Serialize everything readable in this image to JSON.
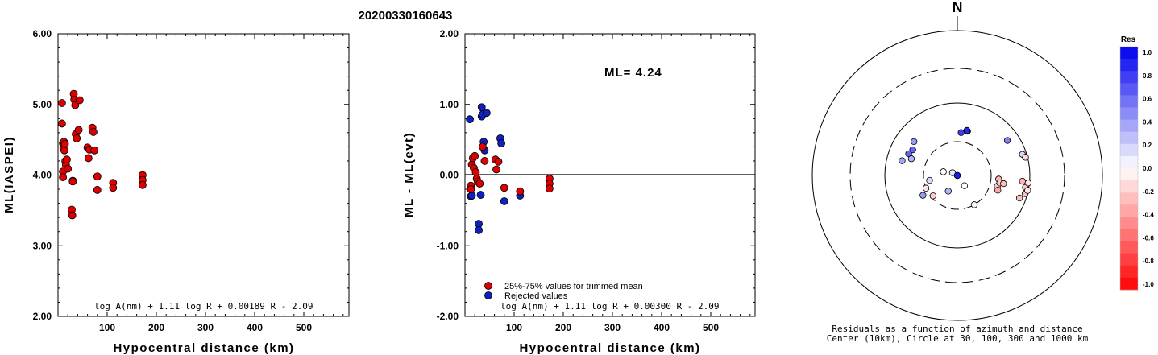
{
  "title": "20200330160643",
  "chart_data": [
    {
      "type": "scatter",
      "name": "ml-vs-distance",
      "xlabel": "Hypocentral distance (km)",
      "ylabel": "ML(IASPEI)",
      "xlim": [
        0,
        600
      ],
      "ylim": [
        2.0,
        6.0
      ],
      "xticks": [
        "100",
        "200",
        "300",
        "400",
        "500"
      ],
      "yticks": [
        "2.00",
        "3.00",
        "4.00",
        "5.00",
        "6.00"
      ],
      "formula": "log A(nm) + 1.11 log R + 0.00189 R - 2.09",
      "points": [
        [
          8,
          5.02
        ],
        [
          8,
          4.73
        ],
        [
          10,
          4.45
        ],
        [
          11,
          4.38
        ],
        [
          10,
          4.05
        ],
        [
          10,
          3.97
        ],
        [
          12,
          4.47
        ],
        [
          13,
          4.35
        ],
        [
          14,
          4.44
        ],
        [
          15,
          4.2
        ],
        [
          16,
          4.15
        ],
        [
          18,
          4.22
        ],
        [
          20,
          4.09
        ],
        [
          28,
          3.51
        ],
        [
          29,
          3.43
        ],
        [
          30,
          3.92
        ],
        [
          30,
          3.91
        ],
        [
          32,
          5.15
        ],
        [
          33,
          5.07
        ],
        [
          35,
          4.99
        ],
        [
          36,
          4.58
        ],
        [
          38,
          4.52
        ],
        [
          42,
          4.64
        ],
        [
          44,
          5.06
        ],
        [
          60,
          4.39
        ],
        [
          62,
          4.24
        ],
        [
          64,
          4.36
        ],
        [
          70,
          4.67
        ],
        [
          72,
          4.61
        ],
        [
          74,
          4.35
        ],
        [
          80,
          3.98
        ],
        [
          80,
          3.79
        ],
        [
          112,
          3.89
        ],
        [
          112,
          3.82
        ],
        [
          172,
          4.0
        ],
        [
          172,
          3.93
        ],
        [
          172,
          3.86
        ]
      ]
    },
    {
      "type": "scatter",
      "name": "residual-vs-distance",
      "xlabel": "Hypocentral distance (km)",
      "ylabel": "ML - ML(evt)",
      "xlim": [
        0,
        600
      ],
      "ylim": [
        -2.0,
        2.0
      ],
      "xticks": [
        "100",
        "200",
        "300",
        "400",
        "500"
      ],
      "yticks": [
        "-2.00",
        "-1.00",
        "0.00",
        "1.00",
        "2.00"
      ],
      "annotation": "ML= 4.24",
      "formula": "log A(nm) + 1.11 log R + 0.00300 R - 2.09",
      "legend": [
        {
          "label": "25%-75% values for trimmed mean",
          "color": "#dd0000"
        },
        {
          "label": "Rejected values",
          "color": "#1020c0"
        }
      ],
      "points_trimmed": [
        [
          12,
          -0.15
        ],
        [
          12,
          -0.2
        ],
        [
          14,
          0.15
        ],
        [
          16,
          0.24
        ],
        [
          18,
          0.1
        ],
        [
          20,
          0.27
        ],
        [
          22,
          0.04
        ],
        [
          24,
          -0.05
        ],
        [
          26,
          -0.09
        ],
        [
          30,
          -0.12
        ],
        [
          36,
          0.4
        ],
        [
          40,
          0.2
        ],
        [
          62,
          0.22
        ],
        [
          64,
          0.08
        ],
        [
          68,
          0.19
        ],
        [
          80,
          -0.18
        ],
        [
          112,
          -0.23
        ],
        [
          172,
          -0.05
        ],
        [
          172,
          -0.12
        ],
        [
          172,
          -0.19
        ]
      ],
      "points_rejected": [
        [
          10,
          0.79
        ],
        [
          12,
          -0.3
        ],
        [
          14,
          -0.29
        ],
        [
          28,
          -0.69
        ],
        [
          28,
          -0.78
        ],
        [
          32,
          -0.28
        ],
        [
          34,
          0.96
        ],
        [
          34,
          0.83
        ],
        [
          36,
          0.86
        ],
        [
          38,
          0.47
        ],
        [
          40,
          0.35
        ],
        [
          44,
          0.88
        ],
        [
          72,
          0.52
        ],
        [
          74,
          0.45
        ],
        [
          80,
          -0.37
        ],
        [
          112,
          -0.29
        ]
      ]
    },
    {
      "type": "scatter",
      "name": "azimuth-distance-residuals",
      "north_label": "N",
      "caption_line1": "Residuals as a function of azimuth and distance",
      "caption_line2": "Center (10km), Circle at 30, 100, 300 and 1000 km",
      "colorbar_title": "Res",
      "colorbar_ticks": [
        "1.0",
        "0.8",
        "0.6",
        "0.4",
        "0.2",
        "0.0",
        "-0.2",
        "-0.4",
        "-0.6",
        "-0.8",
        "-1.0"
      ],
      "colors": {
        "positive": "#0000ee",
        "negative": "#ff0000",
        "zero": "#ffffff"
      },
      "points": [
        [
          300,
          52,
          0.6
        ],
        [
          294,
          55,
          0.6
        ],
        [
          290,
          48,
          0.3
        ],
        [
          308,
          58,
          0.4
        ],
        [
          285,
          62,
          0.35
        ],
        [
          5,
          40,
          0.75
        ],
        [
          13,
          43,
          0.8
        ],
        [
          12,
          44,
          0.85
        ],
        [
          55,
          70,
          0.5
        ],
        [
          72,
          88,
          0.15
        ],
        [
          260,
          25,
          0.15
        ],
        [
          248,
          30,
          -0.1
        ],
        [
          210,
          18,
          0.3
        ],
        [
          230,
          28,
          -0.2
        ],
        [
          300,
          12,
          0.1
        ],
        [
          285,
          16,
          0.0
        ],
        [
          330,
          10,
          -0.1
        ],
        [
          10,
          10,
          0.9
        ],
        [
          240,
          36,
          0.4
        ],
        [
          105,
          38,
          -0.2
        ],
        [
          95,
          38,
          -0.3
        ],
        [
          100,
          40,
          -0.2
        ],
        [
          110,
          40,
          -0.35
        ],
        [
          100,
          45,
          -0.25
        ],
        [
          95,
          80,
          -0.3
        ],
        [
          110,
          82,
          -0.25
        ],
        [
          100,
          90,
          -0.2
        ],
        [
          105,
          93,
          -0.25
        ],
        [
          96,
          96,
          -0.1
        ],
        [
          102,
          98,
          -0.1
        ],
        [
          75,
          94,
          -0.15
        ],
        [
          150,
          30,
          -0.05
        ],
        [
          145,
          15,
          0.0
        ]
      ]
    }
  ]
}
